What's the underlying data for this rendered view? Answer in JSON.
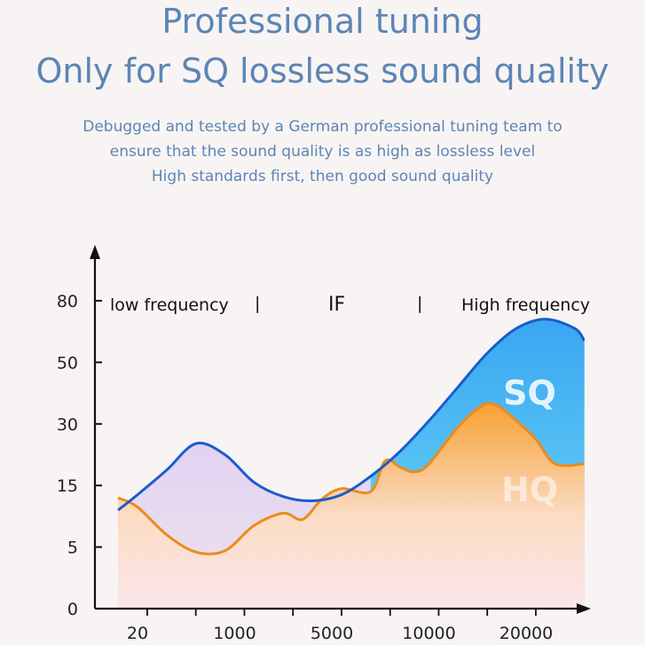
{
  "header": {
    "title_line1": "Professional tuning",
    "title_line2": "Only for SQ lossless sound quality",
    "subtitle_line1": "Debugged and tested by a German professional tuning team to",
    "subtitle_line2": "ensure that the sound quality is as high as lossless level",
    "subtitle_line3": "High standards first, then good sound quality"
  },
  "colors": {
    "text_blue": "#5c85b5",
    "sq_line": "#1a5ccc",
    "sq_fill_top": "#3aa6f2",
    "sq_fill_bottom": "#6fdcf4",
    "hq_line": "#ea8c1c",
    "hq_fill_top": "#f7a032",
    "hq_fill_bottom": "#fbe4d8",
    "axis": "#111111"
  },
  "chart_data": {
    "type": "area",
    "title": "",
    "xlabel": "",
    "ylabel": "",
    "x_ticks": [
      "20",
      "1000",
      "5000",
      "10000",
      "20000"
    ],
    "y_ticks": [
      "0",
      "5",
      "15",
      "30",
      "50",
      "80"
    ],
    "band_labels": [
      "low frequency",
      "IF",
      "High frequency"
    ],
    "band_separator": "|",
    "legend_position": "inline",
    "series": [
      {
        "name": "SQ",
        "points": [
          [
            -0.2,
            1.6
          ],
          [
            0.0,
            1.85
          ],
          [
            0.3,
            2.25
          ],
          [
            0.6,
            2.68
          ],
          [
            0.9,
            2.5
          ],
          [
            1.2,
            2.05
          ],
          [
            1.5,
            1.82
          ],
          [
            1.8,
            1.75
          ],
          [
            2.1,
            1.85
          ],
          [
            2.4,
            2.15
          ],
          [
            2.7,
            2.55
          ],
          [
            3.0,
            3.05
          ],
          [
            3.3,
            3.6
          ],
          [
            3.6,
            4.15
          ],
          [
            3.9,
            4.55
          ],
          [
            4.2,
            4.7
          ],
          [
            4.5,
            4.55
          ],
          [
            4.6,
            4.35
          ]
        ]
      },
      {
        "name": "HQ",
        "points": [
          [
            -0.2,
            1.8
          ],
          [
            0.0,
            1.65
          ],
          [
            0.3,
            1.2
          ],
          [
            0.6,
            0.92
          ],
          [
            0.9,
            0.94
          ],
          [
            1.2,
            1.35
          ],
          [
            1.5,
            1.55
          ],
          [
            1.7,
            1.45
          ],
          [
            1.9,
            1.78
          ],
          [
            2.1,
            1.95
          ],
          [
            2.4,
            1.9
          ],
          [
            2.55,
            2.4
          ],
          [
            2.7,
            2.3
          ],
          [
            2.85,
            2.22
          ],
          [
            3.0,
            2.35
          ],
          [
            3.3,
            2.95
          ],
          [
            3.55,
            3.3
          ],
          [
            3.7,
            3.3
          ],
          [
            3.9,
            3.05
          ],
          [
            4.1,
            2.75
          ],
          [
            4.3,
            2.35
          ],
          [
            4.6,
            2.35
          ]
        ]
      }
    ],
    "xlim": [
      -0.25,
      4.65
    ],
    "ylim_index": [
      0,
      5.6
    ]
  }
}
